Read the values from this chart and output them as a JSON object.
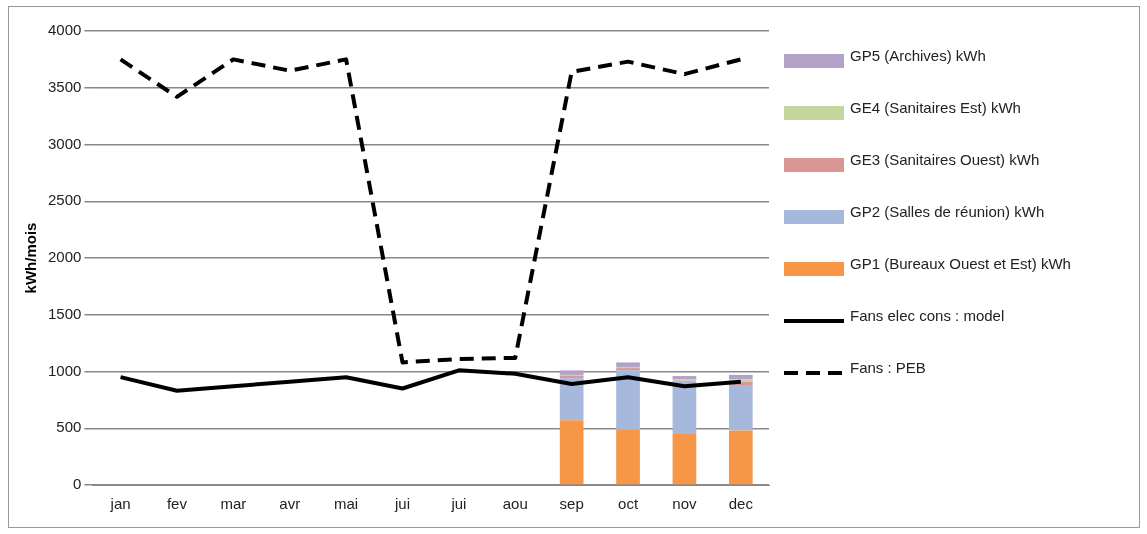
{
  "chart_data": {
    "type": "bar",
    "stacked": true,
    "ylabel": "kWh/mois",
    "categories": [
      "jan",
      "fev",
      "mar",
      "avr",
      "mai",
      "jui",
      "jui",
      "aou",
      "sep",
      "oct",
      "nov",
      "dec"
    ],
    "ylim": [
      0,
      4000
    ],
    "yticks": [
      0,
      500,
      1000,
      1500,
      2000,
      2500,
      3000,
      3500,
      4000
    ],
    "grid": "y",
    "legend": "right",
    "marker": "none",
    "series": [
      {
        "name": "GP1 (Bureaux Ouest et Est) kWh",
        "color": "#f79646",
        "values": [
          null,
          null,
          null,
          null,
          null,
          null,
          null,
          null,
          570,
          490,
          450,
          480
        ]
      },
      {
        "name": "GP2 (Salles de réunion) kWh",
        "color": "#a6b9dc",
        "values": [
          null,
          null,
          null,
          null,
          null,
          null,
          null,
          null,
          370,
          520,
          460,
          400
        ]
      },
      {
        "name": "GE3 (Sanitaires Ouest) kWh",
        "color": "#d99694",
        "values": [
          null,
          null,
          null,
          null,
          null,
          null,
          null,
          null,
          20,
          20,
          10,
          30
        ]
      },
      {
        "name": "GE4 (Sanitaires Est) kWh",
        "color": "#c3d69b",
        "values": [
          null,
          null,
          null,
          null,
          null,
          null,
          null,
          null,
          10,
          10,
          10,
          20
        ]
      },
      {
        "name": "GP5 (Archives) kWh",
        "color": "#b3a2c7",
        "values": [
          null,
          null,
          null,
          null,
          null,
          null,
          null,
          null,
          40,
          40,
          30,
          40
        ]
      },
      {
        "name": "Fans elec cons : model",
        "type": "line",
        "line_style": "solid",
        "color": "#000000",
        "values": [
          950,
          830,
          870,
          910,
          950,
          850,
          1010,
          980,
          890,
          950,
          870,
          910
        ]
      },
      {
        "name": "Fans : PEB",
        "type": "line",
        "line_style": "dashed",
        "color": "#000000",
        "values": [
          3750,
          3420,
          3750,
          3650,
          3750,
          1080,
          1110,
          1120,
          3640,
          3730,
          3620,
          3750
        ]
      }
    ]
  }
}
